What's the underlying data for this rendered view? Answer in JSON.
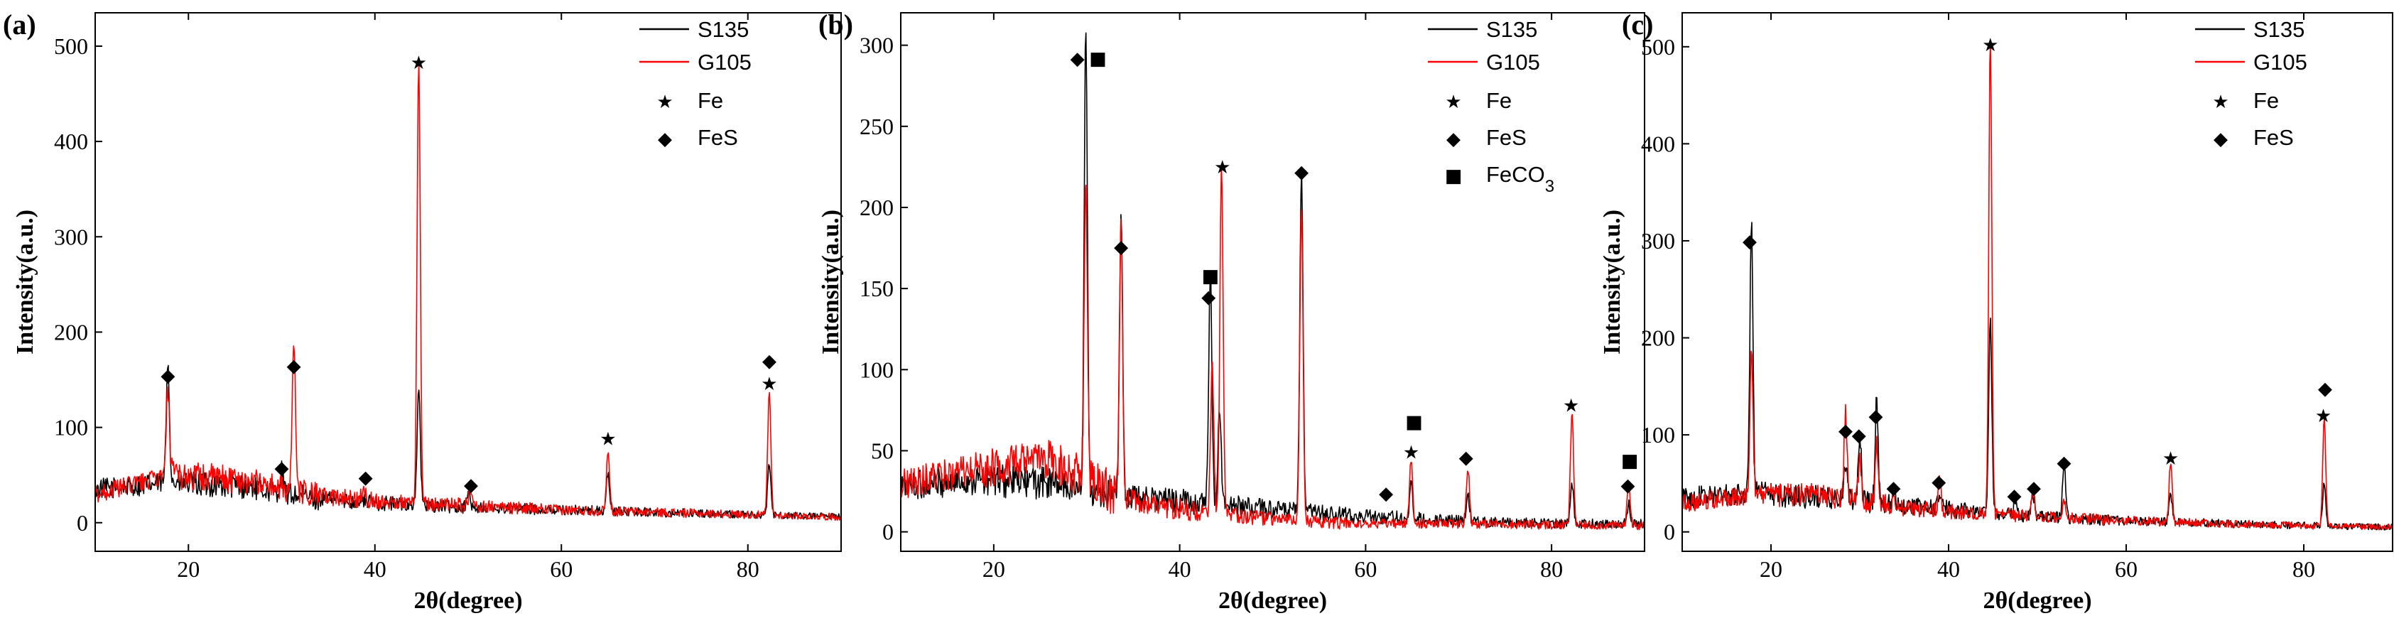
{
  "chart_data": [
    {
      "type": "line",
      "panel": "(a)",
      "xlabel": "2θ(degree)",
      "ylabel": "Intensity(a.u.)",
      "xlim": [
        10,
        90
      ],
      "ylim": [
        -30,
        535
      ],
      "xticks": [
        20,
        40,
        60,
        80
      ],
      "yticks": [
        0,
        100,
        200,
        300,
        400,
        500
      ],
      "baseline": {
        "S135": [
          35,
          42,
          38,
          25,
          20,
          16,
          14,
          12,
          10,
          8,
          6
        ],
        "G105": [
          30,
          50,
          45,
          28,
          22,
          18,
          14,
          12,
          10,
          8,
          6
        ]
      },
      "series": [
        {
          "name": "S135",
          "color": "#000000",
          "peaks": [
            [
              17.8,
              130
            ],
            [
              30.0,
              22
            ],
            [
              44.7,
              120
            ],
            [
              50.0,
              18
            ],
            [
              65.0,
              40
            ],
            [
              82.3,
              55
            ]
          ]
        },
        {
          "name": "G105",
          "color": "#ff0000",
          "peaks": [
            [
              17.8,
              90
            ],
            [
              31.3,
              155
            ],
            [
              38.8,
              14
            ],
            [
              44.7,
              470
            ],
            [
              50.2,
              15
            ],
            [
              65.0,
              62
            ],
            [
              82.3,
              128
            ]
          ]
        }
      ],
      "legend": {
        "lines": [
          {
            "label": "S135",
            "color": "#000000"
          },
          {
            "label": "G105",
            "color": "#ff0000"
          }
        ],
        "markers": [
          {
            "symbol": "★",
            "label": "Fe"
          },
          {
            "symbol": "◆",
            "label": "FeS"
          }
        ]
      },
      "annotations": [
        {
          "symbol": "◆",
          "x": 17.8,
          "y": 155
        },
        {
          "symbol": "◆",
          "x": 30.0,
          "y": 58
        },
        {
          "symbol": "◆",
          "x": 31.3,
          "y": 165
        },
        {
          "symbol": "◆",
          "x": 39.0,
          "y": 48
        },
        {
          "symbol": "★",
          "x": 44.7,
          "y": 483
        },
        {
          "symbol": "◆",
          "x": 50.3,
          "y": 40
        },
        {
          "symbol": "★",
          "x": 65.0,
          "y": 88
        },
        {
          "symbol": "◆",
          "x": 82.3,
          "y": 170
        },
        {
          "symbol": "★",
          "x": 82.3,
          "y": 146
        }
      ]
    },
    {
      "type": "line",
      "panel": "(b)",
      "xlabel": "2θ(degree)",
      "ylabel": "Intensity(a.u.)",
      "xlim": [
        10,
        90
      ],
      "ylim": [
        -12,
        320
      ],
      "xticks": [
        20,
        40,
        60,
        80
      ],
      "yticks": [
        0,
        50,
        100,
        150,
        200,
        250,
        300
      ],
      "baseline": {
        "S135": [
          28,
          32,
          30,
          22,
          18,
          14,
          10,
          8,
          6,
          5,
          5
        ],
        "G105": [
          30,
          38,
          45,
          20,
          12,
          8,
          5,
          5,
          5,
          4,
          4
        ]
      },
      "series": [
        {
          "name": "S135",
          "color": "#000000",
          "peaks": [
            [
              29.9,
              285
            ],
            [
              33.7,
              170
            ],
            [
              43.3,
              140
            ],
            [
              44.3,
              60
            ],
            [
              53.1,
              212
            ],
            [
              64.9,
              20
            ],
            [
              71.0,
              15
            ],
            [
              82.2,
              25
            ],
            [
              88.3,
              12
            ]
          ]
        },
        {
          "name": "G105",
          "color": "#ff0000",
          "peaks": [
            [
              29.9,
              185
            ],
            [
              33.7,
              165
            ],
            [
              43.5,
              90
            ],
            [
              44.5,
              215
            ],
            [
              53.1,
              195
            ],
            [
              64.9,
              40
            ],
            [
              71.0,
              35
            ],
            [
              82.2,
              68
            ],
            [
              88.3,
              25
            ]
          ]
        }
      ],
      "legend": {
        "lines": [
          {
            "label": "S135",
            "color": "#000000"
          },
          {
            "label": "G105",
            "color": "#ff0000"
          }
        ],
        "markers": [
          {
            "symbol": "★",
            "label": "Fe"
          },
          {
            "symbol": "◆",
            "label": "FeS"
          },
          {
            "symbol": "■",
            "label": "FeCO",
            "subscript": "3"
          }
        ]
      },
      "annotations": [
        {
          "symbol": "◆",
          "x": 29.0,
          "y": 292
        },
        {
          "symbol": "■",
          "x": 31.2,
          "y": 292
        },
        {
          "symbol": "◆",
          "x": 33.7,
          "y": 176
        },
        {
          "symbol": "■",
          "x": 43.3,
          "y": 158
        },
        {
          "symbol": "◆",
          "x": 43.1,
          "y": 145
        },
        {
          "symbol": "★",
          "x": 44.6,
          "y": 225
        },
        {
          "symbol": "◆",
          "x": 53.1,
          "y": 222
        },
        {
          "symbol": "◆",
          "x": 62.2,
          "y": 24
        },
        {
          "symbol": "■",
          "x": 65.2,
          "y": 68
        },
        {
          "symbol": "★",
          "x": 64.9,
          "y": 49
        },
        {
          "symbol": "◆",
          "x": 70.8,
          "y": 46
        },
        {
          "symbol": "★",
          "x": 82.1,
          "y": 78
        },
        {
          "symbol": "■",
          "x": 88.4,
          "y": 44
        },
        {
          "symbol": "◆",
          "x": 88.2,
          "y": 29
        }
      ]
    },
    {
      "type": "line",
      "panel": "(c)",
      "xlabel": "2θ(degree)",
      "ylabel": "Intensity(a.u.)",
      "xlim": [
        10,
        90
      ],
      "ylim": [
        -20,
        535
      ],
      "xticks": [
        20,
        40,
        60,
        80
      ],
      "yticks": [
        0,
        100,
        200,
        300,
        400,
        500
      ],
      "baseline": {
        "S135": [
          35,
          40,
          35,
          28,
          22,
          16,
          12,
          10,
          8,
          6,
          5
        ],
        "G105": [
          30,
          38,
          38,
          25,
          20,
          16,
          12,
          10,
          8,
          6,
          5
        ]
      },
      "series": [
        {
          "name": "S135",
          "color": "#000000",
          "peaks": [
            [
              17.8,
              285
            ],
            [
              28.4,
              40
            ],
            [
              30.0,
              70
            ],
            [
              31.9,
              108
            ],
            [
              33.8,
              20
            ],
            [
              39.0,
              18
            ],
            [
              44.7,
              200
            ],
            [
              47.5,
              15
            ],
            [
              49.5,
              25
            ],
            [
              53.0,
              58
            ],
            [
              65.0,
              30
            ],
            [
              82.3,
              45
            ]
          ]
        },
        {
          "name": "G105",
          "color": "#ff0000",
          "peaks": [
            [
              17.8,
              150
            ],
            [
              28.4,
              90
            ],
            [
              30.0,
              48
            ],
            [
              31.9,
              60
            ],
            [
              33.8,
              12
            ],
            [
              39.0,
              30
            ],
            [
              44.7,
              490
            ],
            [
              49.5,
              28
            ],
            [
              53.0,
              20
            ],
            [
              65.0,
              62
            ],
            [
              82.3,
              110
            ]
          ]
        }
      ],
      "legend": {
        "lines": [
          {
            "label": "S135",
            "color": "#000000"
          },
          {
            "label": "G105",
            "color": "#ff0000"
          }
        ],
        "markers": [
          {
            "symbol": "★",
            "label": "Fe"
          },
          {
            "symbol": "◆",
            "label": "FeS"
          }
        ]
      },
      "annotations": [
        {
          "symbol": "◆",
          "x": 17.6,
          "y": 300
        },
        {
          "symbol": "◆",
          "x": 28.4,
          "y": 105
        },
        {
          "symbol": "◆",
          "x": 29.9,
          "y": 100
        },
        {
          "symbol": "◆",
          "x": 31.8,
          "y": 120
        },
        {
          "symbol": "◆",
          "x": 33.8,
          "y": 46
        },
        {
          "symbol": "◆",
          "x": 38.9,
          "y": 52
        },
        {
          "symbol": "★",
          "x": 44.7,
          "y": 502
        },
        {
          "symbol": "◆",
          "x": 47.4,
          "y": 38
        },
        {
          "symbol": "◆",
          "x": 49.6,
          "y": 46
        },
        {
          "symbol": "◆",
          "x": 53.0,
          "y": 72
        },
        {
          "symbol": "★",
          "x": 65.0,
          "y": 76
        },
        {
          "symbol": "◆",
          "x": 82.4,
          "y": 148
        },
        {
          "symbol": "★",
          "x": 82.2,
          "y": 120
        }
      ]
    }
  ]
}
